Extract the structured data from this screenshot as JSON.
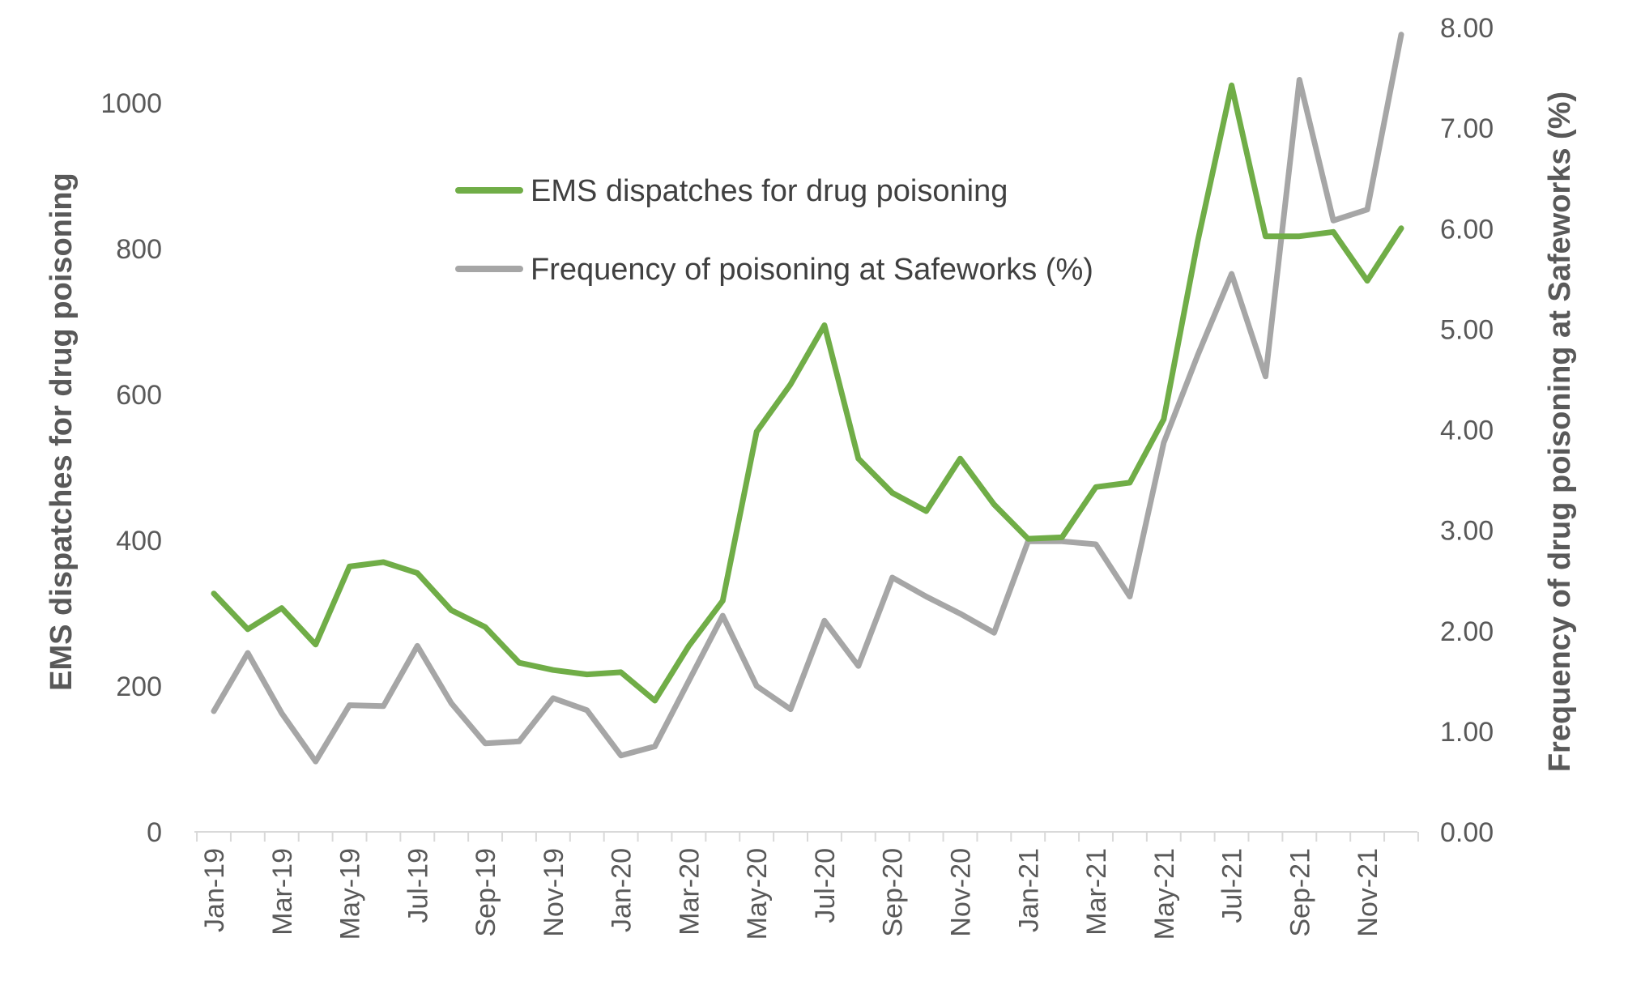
{
  "chart_data": {
    "type": "line",
    "categories": [
      "Jan-19",
      "Feb-19",
      "Mar-19",
      "Apr-19",
      "May-19",
      "Jun-19",
      "Jul-19",
      "Aug-19",
      "Sep-19",
      "Oct-19",
      "Nov-19",
      "Dec-19",
      "Jan-20",
      "Feb-20",
      "Mar-20",
      "Apr-20",
      "May-20",
      "Jun-20",
      "Jul-20",
      "Aug-20",
      "Sep-20",
      "Oct-20",
      "Nov-20",
      "Dec-20",
      "Jan-21",
      "Feb-21",
      "Mar-21",
      "Apr-21",
      "May-21",
      "Jun-21",
      "Jul-21",
      "Aug-21",
      "Sep-21",
      "Oct-21",
      "Nov-21",
      "Dec-21"
    ],
    "x_tick_labels": [
      "Jan-19",
      "Mar-19",
      "May-19",
      "Jul-19",
      "Sep-19",
      "Nov-19",
      "Jan-20",
      "Mar-20",
      "May-20",
      "Jul-20",
      "Sep-20",
      "Nov-20",
      "Jan-21",
      "Mar-21",
      "May-21",
      "Jul-21",
      "Sep-21",
      "Nov-21"
    ],
    "series": [
      {
        "name": "EMS dispatches for drug poisoning",
        "axis": "left",
        "color": "#70AD47",
        "values": [
          327,
          278,
          307,
          257,
          364,
          370,
          355,
          304,
          281,
          232,
          222,
          216,
          219,
          180,
          255,
          317,
          549,
          614,
          695,
          512,
          465,
          440,
          512,
          449,
          402,
          404,
          473,
          479,
          566,
          810,
          1024,
          817,
          817,
          823,
          756,
          828
        ]
      },
      {
        "name": "Frequency of poisoning at Safeworks (%)",
        "axis": "right",
        "color": "#A6A6A6",
        "values": [
          1.2,
          1.78,
          1.18,
          0.7,
          1.26,
          1.25,
          1.85,
          1.28,
          0.88,
          0.9,
          1.33,
          1.21,
          0.76,
          0.85,
          1.5,
          2.15,
          1.45,
          1.22,
          2.1,
          1.65,
          2.53,
          2.34,
          2.17,
          1.98,
          2.89,
          2.89,
          2.86,
          2.34,
          3.87,
          4.74,
          5.55,
          4.53,
          7.48,
          6.08,
          6.19,
          7.93
        ]
      }
    ],
    "left_axis": {
      "title": "EMS dispatches for drug poisoning",
      "ylim": [
        0,
        1100
      ],
      "ticks": [
        0,
        200,
        400,
        600,
        800,
        1000
      ],
      "tick_labels": [
        "0",
        "200",
        "400",
        "600",
        "800",
        "1000"
      ]
    },
    "right_axis": {
      "title": "Frequency of drug poisoning at Safeworks (%)",
      "ylim": [
        0,
        8
      ],
      "ticks": [
        0,
        1,
        2,
        3,
        4,
        5,
        6,
        7,
        8
      ],
      "tick_labels": [
        "0.00",
        "1.00",
        "2.00",
        "3.00",
        "4.00",
        "5.00",
        "6.00",
        "7.00",
        "8.00"
      ]
    },
    "legend": {
      "position": "upper-center",
      "entries": [
        "EMS dispatches for drug poisoning",
        "Frequency of poisoning at Safeworks (%)"
      ]
    },
    "grid": false,
    "axis_line_color": "#D9D9D9"
  }
}
